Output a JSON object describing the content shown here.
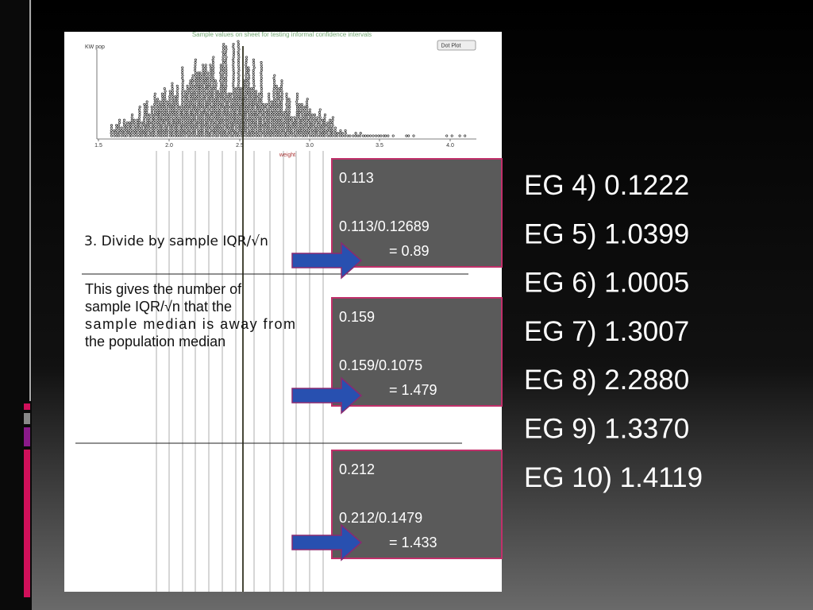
{
  "dot_plot": {
    "title": "Sample values on sheet for testing informal confidence intervals",
    "y_label": "KW pop",
    "button": "Dot Plot",
    "x_label": "weight",
    "x_ticks": [
      "1.5",
      "2.0",
      "2.5",
      "3.0",
      "3.5",
      "4.0"
    ]
  },
  "step": "3. Divide by sample IQR/√n",
  "explanation": [
    "This gives the number of",
    "sample IQR/√n that the",
    "sample median is away from",
    "the population median"
  ],
  "boxes": [
    {
      "value": "0.113",
      "calc": "0.113/0.12689",
      "result": "= 0.89"
    },
    {
      "value": "0.159",
      "calc": "0.159/0.1075",
      "result": "= 1.479"
    },
    {
      "value": "0.212",
      "calc": "0.212/0.1479",
      "result": "= 1.433"
    }
  ],
  "results": [
    "EG 4) 0.1222",
    "EG 5) 1.0399",
    "EG 6) 1.0005",
    "EG 7) 1.3007",
    "EG 8) 2.2880",
    "EG 9) 1.3370",
    "EG 10) 1.4119"
  ]
}
